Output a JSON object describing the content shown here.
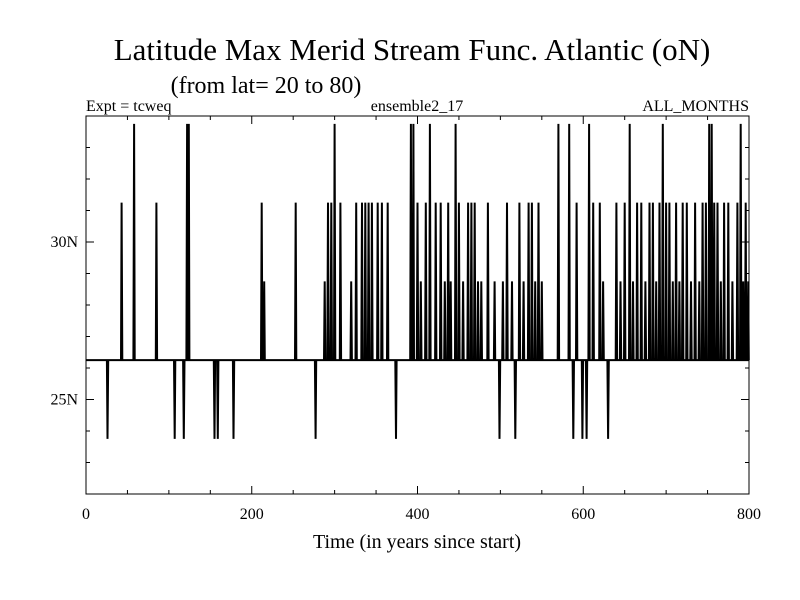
{
  "chart_data": {
    "type": "line",
    "title": "Latitude Max Merid Stream Func. Atlantic (oN)",
    "subtitle": "(from lat= 20 to 80)",
    "header_left": "Expt = tcweq",
    "header_center": "ensemble2_17",
    "header_right": "ALL_MONTHS",
    "xlabel": "Time (in years since start)",
    "ylabel": "",
    "xlim": [
      0,
      800
    ],
    "ylim": [
      22,
      34
    ],
    "x_ticks": [
      0,
      200,
      400,
      600,
      800
    ],
    "x_tick_labels": [
      "0",
      "200",
      "400",
      "600",
      "800"
    ],
    "y_ticks": [
      25,
      30
    ],
    "y_tick_labels": [
      "25N",
      "30N"
    ],
    "grid": false,
    "legend": "none",
    "baseline": 26.25,
    "levels": {
      "low": 23.75,
      "baseline": 26.25,
      "mid_low": 27.5,
      "mid": 28.75,
      "mid_high": 31.25,
      "high": 33.75
    },
    "series": [
      {
        "color": "#000000",
        "spikes": [
          [
            26,
            23.75
          ],
          [
            43,
            31.25
          ],
          [
            58,
            33.75
          ],
          [
            85,
            31.25
          ],
          [
            107,
            23.75
          ],
          [
            118,
            23.75
          ],
          [
            122,
            33.75
          ],
          [
            124,
            33.75
          ],
          [
            155,
            23.75
          ],
          [
            159,
            23.75
          ],
          [
            178,
            23.75
          ],
          [
            212,
            31.25
          ],
          [
            215,
            28.75
          ],
          [
            253,
            31.25
          ],
          [
            277,
            23.75
          ],
          [
            288,
            28.75
          ],
          [
            292,
            31.25
          ],
          [
            296,
            31.25
          ],
          [
            300,
            33.75
          ],
          [
            307,
            31.25
          ],
          [
            320,
            28.75
          ],
          [
            326,
            31.25
          ],
          [
            333,
            31.25
          ],
          [
            337,
            31.25
          ],
          [
            341,
            31.25
          ],
          [
            345,
            31.25
          ],
          [
            352,
            31.25
          ],
          [
            357,
            31.25
          ],
          [
            364,
            31.25
          ],
          [
            374,
            23.75
          ],
          [
            392,
            33.75
          ],
          [
            395,
            33.75
          ],
          [
            400,
            31.25
          ],
          [
            404,
            28.75
          ],
          [
            410,
            31.25
          ],
          [
            415,
            33.75
          ],
          [
            422,
            31.25
          ],
          [
            428,
            31.25
          ],
          [
            433,
            28.75
          ],
          [
            437,
            31.25
          ],
          [
            440,
            28.75
          ],
          [
            446,
            33.75
          ],
          [
            450,
            31.25
          ],
          [
            455,
            28.75
          ],
          [
            461,
            31.25
          ],
          [
            465,
            31.25
          ],
          [
            469,
            31.25
          ],
          [
            473,
            28.75
          ],
          [
            477,
            28.75
          ],
          [
            485,
            31.25
          ],
          [
            493,
            28.75
          ],
          [
            499,
            23.75
          ],
          [
            503,
            28.75
          ],
          [
            508,
            31.25
          ],
          [
            514,
            28.75
          ],
          [
            518,
            23.75
          ],
          [
            523,
            31.25
          ],
          [
            528,
            28.75
          ],
          [
            534,
            31.25
          ],
          [
            538,
            31.25
          ],
          [
            542,
            28.75
          ],
          [
            546,
            31.25
          ],
          [
            550,
            28.75
          ],
          [
            570,
            33.75
          ],
          [
            583,
            33.75
          ],
          [
            588,
            23.75
          ],
          [
            592,
            31.25
          ],
          [
            599,
            23.75
          ],
          [
            604,
            23.75
          ],
          [
            607,
            33.75
          ],
          [
            612,
            31.25
          ],
          [
            620,
            31.25
          ],
          [
            624,
            28.75
          ],
          [
            630,
            23.75
          ],
          [
            640,
            31.25
          ],
          [
            645,
            28.75
          ],
          [
            650,
            31.25
          ],
          [
            656,
            33.75
          ],
          [
            660,
            28.75
          ],
          [
            665,
            31.25
          ],
          [
            670,
            31.25
          ],
          [
            675,
            28.75
          ],
          [
            680,
            31.25
          ],
          [
            684,
            31.25
          ],
          [
            688,
            28.75
          ],
          [
            692,
            31.25
          ],
          [
            696,
            33.75
          ],
          [
            700,
            31.25
          ],
          [
            704,
            31.25
          ],
          [
            708,
            28.75
          ],
          [
            712,
            31.25
          ],
          [
            716,
            28.75
          ],
          [
            720,
            31.25
          ],
          [
            725,
            31.25
          ],
          [
            730,
            28.75
          ],
          [
            735,
            31.25
          ],
          [
            740,
            28.75
          ],
          [
            744,
            31.25
          ],
          [
            748,
            31.25
          ],
          [
            752,
            33.75
          ],
          [
            755,
            33.75
          ],
          [
            758,
            31.25
          ],
          [
            762,
            31.25
          ],
          [
            766,
            28.75
          ],
          [
            770,
            31.25
          ],
          [
            775,
            31.25
          ],
          [
            780,
            28.75
          ],
          [
            786,
            31.25
          ],
          [
            790,
            33.75
          ],
          [
            793,
            28.75
          ],
          [
            796,
            31.25
          ],
          [
            799,
            28.75
          ]
        ]
      }
    ]
  }
}
